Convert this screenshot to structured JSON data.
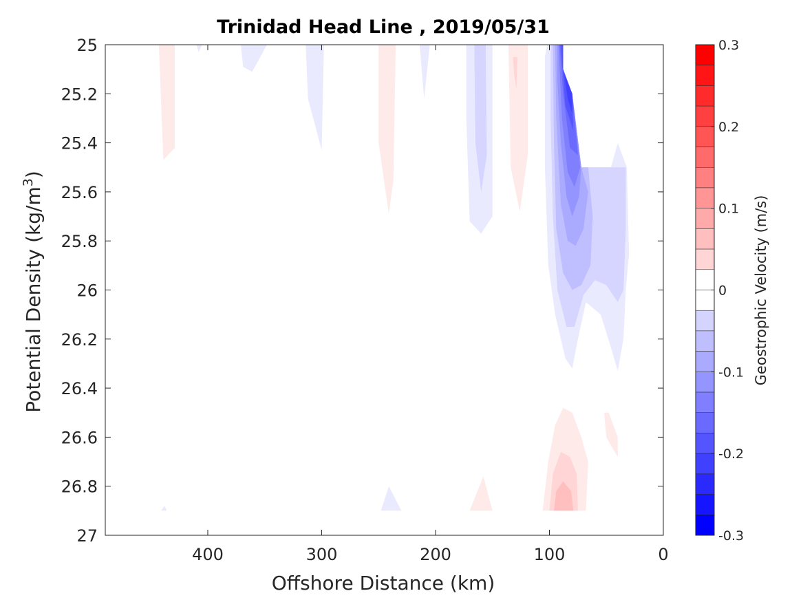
{
  "chart_data": {
    "type": "contour",
    "title": "Trinidad Head Line , 2019/05/31",
    "xlabel": "Offshore Distance (km)",
    "ylabel_main": "Potential Density (kg/m",
    "ylabel_sup": "3",
    "ylabel_close": ")",
    "xlim": [
      490,
      0
    ],
    "ylim": [
      25,
      27
    ],
    "x_reversed": true,
    "y_reversed": true,
    "xticks": [
      400,
      300,
      200,
      100,
      0
    ],
    "xtick_labels": [
      "400",
      "300",
      "200",
      "100",
      "0"
    ],
    "yticks": [
      25,
      25.2,
      25.4,
      25.6,
      25.8,
      26,
      26.2,
      26.4,
      26.6,
      26.8,
      27
    ],
    "ytick_labels": [
      "25",
      "25.2",
      "25.4",
      "25.6",
      "25.8",
      "26",
      "26.2",
      "26.4",
      "26.6",
      "26.8",
      "27"
    ],
    "colorbar": {
      "label": "Geostrophic Velocity (m/s)",
      "range": [
        -0.3,
        0.3
      ],
      "level_step": 0.025,
      "ticks": [
        0.3,
        0.2,
        0.1,
        0,
        -0.1,
        -0.2,
        -0.3
      ],
      "tick_labels": [
        "0.3",
        "0.2",
        "0.1",
        "0",
        "-0.1",
        "-0.2",
        "-0.3"
      ],
      "negative_color": "#0000ff",
      "positive_color": "#ff0000",
      "zero_color": "#ffffff"
    },
    "contour_regions": [
      {
        "level": 0.025,
        "points": [
          [
            443,
            25.0
          ],
          [
            429,
            25.0
          ],
          [
            429,
            25.42
          ],
          [
            439,
            25.47
          ]
        ]
      },
      {
        "level": -0.025,
        "points": [
          [
            410,
            25.0
          ],
          [
            405,
            25.0
          ],
          [
            408,
            25.03
          ]
        ]
      },
      {
        "level": -0.025,
        "points": [
          [
            371,
            25.0
          ],
          [
            348,
            25.0
          ],
          [
            361,
            25.11
          ],
          [
            369,
            25.09
          ]
        ]
      },
      {
        "level": -0.025,
        "points": [
          [
            314,
            25.0
          ],
          [
            298,
            25.0
          ],
          [
            300,
            25.43
          ],
          [
            312,
            25.22
          ]
        ]
      },
      {
        "level": 0.025,
        "points": [
          [
            250,
            25.0
          ],
          [
            235,
            25.0
          ],
          [
            237,
            25.55
          ],
          [
            241,
            25.69
          ],
          [
            250,
            25.4
          ]
        ]
      },
      {
        "level": -0.025,
        "points": [
          [
            214,
            25.0
          ],
          [
            205,
            25.0
          ],
          [
            210,
            25.22
          ]
        ]
      },
      {
        "level": -0.025,
        "points": [
          [
            173,
            25.0
          ],
          [
            150,
            25.0
          ],
          [
            150,
            25.7
          ],
          [
            160,
            25.77
          ],
          [
            170,
            25.72
          ],
          [
            173,
            25.3
          ]
        ]
      },
      {
        "level": -0.05,
        "points": [
          [
            166,
            25.0
          ],
          [
            156,
            25.0
          ],
          [
            155,
            25.45
          ],
          [
            160,
            25.6
          ],
          [
            165,
            25.4
          ]
        ]
      },
      {
        "level": 0.025,
        "points": [
          [
            136,
            25.0
          ],
          [
            119,
            25.0
          ],
          [
            119,
            25.45
          ],
          [
            126,
            25.68
          ],
          [
            134,
            25.5
          ]
        ]
      },
      {
        "level": 0.05,
        "points": [
          [
            132,
            25.05
          ],
          [
            128,
            25.05
          ],
          [
            129,
            25.18
          ],
          [
            131,
            25.12
          ]
        ]
      },
      {
        "level": -0.025,
        "points": [
          [
            102,
            25.0
          ],
          [
            88,
            25.0
          ],
          [
            88,
            25.1
          ],
          [
            80,
            25.2
          ],
          [
            72,
            25.5
          ],
          [
            62,
            25.5
          ],
          [
            55,
            25.5
          ],
          [
            46,
            25.5
          ],
          [
            40,
            25.4
          ],
          [
            32,
            25.5
          ],
          [
            31,
            25.7
          ],
          [
            30,
            25.85
          ],
          [
            33,
            26.0
          ],
          [
            35,
            26.2
          ],
          [
            40,
            26.33
          ],
          [
            45,
            26.25
          ],
          [
            55,
            26.1
          ],
          [
            68,
            26.05
          ],
          [
            75,
            26.2
          ],
          [
            80,
            26.32
          ],
          [
            86,
            26.28
          ],
          [
            95,
            26.1
          ],
          [
            101,
            25.9
          ],
          [
            104,
            25.5
          ],
          [
            104,
            25.05
          ]
        ]
      },
      {
        "level": -0.05,
        "points": [
          [
            99,
            25.0
          ],
          [
            88,
            25.0
          ],
          [
            88,
            25.1
          ],
          [
            80,
            25.2
          ],
          [
            72,
            25.5
          ],
          [
            62,
            25.5
          ],
          [
            52,
            25.5
          ],
          [
            47,
            25.5
          ],
          [
            40,
            25.5
          ],
          [
            33,
            25.5
          ],
          [
            33,
            25.75
          ],
          [
            35,
            26.0
          ],
          [
            40,
            26.05
          ],
          [
            50,
            25.98
          ],
          [
            60,
            25.96
          ],
          [
            70,
            26.02
          ],
          [
            78,
            26.15
          ],
          [
            85,
            26.15
          ],
          [
            93,
            26.0
          ],
          [
            97,
            25.7
          ],
          [
            99,
            25.3
          ]
        ]
      },
      {
        "level": -0.075,
        "points": [
          [
            97,
            25.0
          ],
          [
            88,
            25.0
          ],
          [
            88,
            25.1
          ],
          [
            80,
            25.2
          ],
          [
            72,
            25.5
          ],
          [
            66,
            25.5
          ],
          [
            62,
            25.7
          ],
          [
            64,
            25.9
          ],
          [
            72,
            25.98
          ],
          [
            80,
            26.0
          ],
          [
            88,
            25.93
          ],
          [
            94,
            25.75
          ],
          [
            96,
            25.4
          ]
        ]
      },
      {
        "level": -0.1,
        "points": [
          [
            95,
            25.0
          ],
          [
            88,
            25.0
          ],
          [
            88,
            25.1
          ],
          [
            80,
            25.2
          ],
          [
            72,
            25.5
          ],
          [
            66,
            25.6
          ],
          [
            70,
            25.75
          ],
          [
            77,
            25.82
          ],
          [
            84,
            25.8
          ],
          [
            90,
            25.65
          ],
          [
            94,
            25.3
          ]
        ]
      },
      {
        "level": -0.125,
        "points": [
          [
            93,
            25.0
          ],
          [
            88,
            25.0
          ],
          [
            88,
            25.1
          ],
          [
            80,
            25.2
          ],
          [
            72,
            25.5
          ],
          [
            74,
            25.62
          ],
          [
            80,
            25.7
          ],
          [
            85,
            25.62
          ],
          [
            90,
            25.4
          ],
          [
            93,
            25.15
          ]
        ]
      },
      {
        "level": -0.15,
        "points": [
          [
            92,
            25.0
          ],
          [
            88,
            25.0
          ],
          [
            88,
            25.1
          ],
          [
            80,
            25.2
          ],
          [
            73,
            25.5
          ],
          [
            78,
            25.58
          ],
          [
            84,
            25.52
          ],
          [
            89,
            25.3
          ]
        ]
      },
      {
        "level": -0.175,
        "points": [
          [
            91,
            25.0
          ],
          [
            88,
            25.0
          ],
          [
            88,
            25.1
          ],
          [
            80,
            25.2
          ],
          [
            75,
            25.45
          ],
          [
            82,
            25.42
          ],
          [
            88,
            25.2
          ]
        ]
      },
      {
        "level": -0.2,
        "points": [
          [
            90,
            25.0
          ],
          [
            88,
            25.0
          ],
          [
            88,
            25.1
          ],
          [
            80,
            25.2
          ],
          [
            79,
            25.35
          ],
          [
            86,
            25.25
          ]
        ]
      },
      {
        "level": -0.225,
        "points": [
          [
            87,
            25.12
          ],
          [
            80,
            25.2
          ],
          [
            80,
            25.28
          ],
          [
            84,
            25.22
          ]
        ]
      },
      {
        "level": 0.025,
        "points": [
          [
            106,
            26.9
          ],
          [
            68,
            26.9
          ],
          [
            66,
            26.7
          ],
          [
            72,
            26.6
          ],
          [
            80,
            26.5
          ],
          [
            88,
            26.48
          ],
          [
            95,
            26.55
          ],
          [
            101,
            26.7
          ]
        ]
      },
      {
        "level": 0.05,
        "points": [
          [
            100,
            26.9
          ],
          [
            75,
            26.9
          ],
          [
            76,
            26.75
          ],
          [
            82,
            26.68
          ],
          [
            90,
            26.66
          ],
          [
            97,
            26.75
          ]
        ]
      },
      {
        "level": 0.075,
        "points": [
          [
            96,
            26.9
          ],
          [
            79,
            26.9
          ],
          [
            81,
            26.82
          ],
          [
            88,
            26.78
          ],
          [
            94,
            26.82
          ]
        ]
      },
      {
        "level": 0.025,
        "points": [
          [
            52,
            26.5
          ],
          [
            48,
            26.5
          ],
          [
            40,
            26.6
          ],
          [
            40,
            26.68
          ],
          [
            44,
            26.65
          ],
          [
            50,
            26.6
          ]
        ]
      },
      {
        "level": 0.025,
        "points": [
          [
            170,
            26.9
          ],
          [
            150,
            26.9
          ],
          [
            158,
            26.76
          ]
        ]
      },
      {
        "level": -0.025,
        "points": [
          [
            248,
            26.9
          ],
          [
            230,
            26.9
          ],
          [
            241,
            26.8
          ]
        ]
      },
      {
        "level": -0.025,
        "points": [
          [
            441,
            26.9
          ],
          [
            436,
            26.9
          ],
          [
            438,
            26.88
          ]
        ]
      }
    ]
  }
}
